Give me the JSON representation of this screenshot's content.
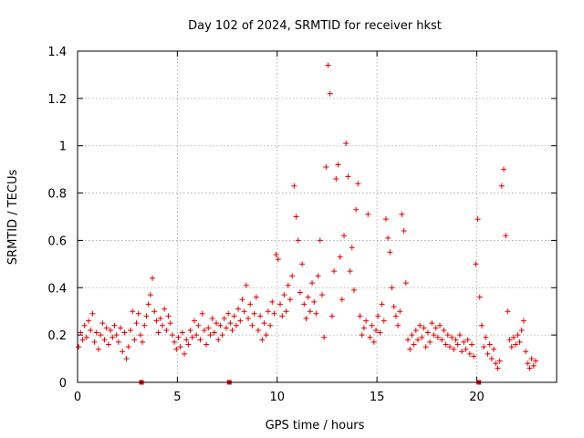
{
  "chart_data": {
    "type": "scatter",
    "title": "Day 102 of 2024, SRMTID for receiver hkst",
    "xlabel": "GPS time / hours",
    "ylabel": "SRMTID / TECUs",
    "xlim": [
      0,
      24
    ],
    "ylim": [
      0,
      1.4
    ],
    "xticks": [
      0,
      5,
      10,
      15,
      20
    ],
    "xtick_labels": [
      "0",
      "5",
      "10",
      "15",
      "20"
    ],
    "yticks": [
      0,
      0.2,
      0.4,
      0.6,
      0.8,
      1.0,
      1.2,
      1.4
    ],
    "ytick_labels": [
      "0",
      "0.2",
      "0.4",
      "0.6",
      "0.8",
      "1",
      "1.2",
      "1.4"
    ],
    "grid": true,
    "marker": "plus",
    "color": "#e00000",
    "series": [
      {
        "name": "SRMTID",
        "points": [
          [
            0.05,
            0.15
          ],
          [
            0.15,
            0.21
          ],
          [
            0.25,
            0.18
          ],
          [
            0.35,
            0.24
          ],
          [
            0.45,
            0.19
          ],
          [
            0.55,
            0.26
          ],
          [
            0.65,
            0.22
          ],
          [
            0.75,
            0.29
          ],
          [
            0.85,
            0.17
          ],
          [
            0.95,
            0.21
          ],
          [
            1.05,
            0.14
          ],
          [
            1.15,
            0.2
          ],
          [
            1.25,
            0.25
          ],
          [
            1.35,
            0.18
          ],
          [
            1.45,
            0.23
          ],
          [
            1.55,
            0.16
          ],
          [
            1.65,
            0.22
          ],
          [
            1.75,
            0.19
          ],
          [
            1.85,
            0.24
          ],
          [
            1.95,
            0.2
          ],
          [
            2.05,
            0.17
          ],
          [
            2.15,
            0.23
          ],
          [
            2.25,
            0.13
          ],
          [
            2.35,
            0.21
          ],
          [
            2.45,
            0.1
          ],
          [
            2.55,
            0.15
          ],
          [
            2.65,
            0.22
          ],
          [
            2.75,
            0.3
          ],
          [
            2.85,
            0.18
          ],
          [
            2.95,
            0.25
          ],
          [
            3.05,
            0.29
          ],
          [
            3.15,
            0.2
          ],
          [
            3.25,
            0.17
          ],
          [
            3.35,
            0.24
          ],
          [
            3.45,
            0.28
          ],
          [
            3.55,
            0.33
          ],
          [
            3.65,
            0.37
          ],
          [
            3.75,
            0.44
          ],
          [
            3.85,
            0.3
          ],
          [
            3.95,
            0.26
          ],
          [
            4.05,
            0.21
          ],
          [
            4.15,
            0.27
          ],
          [
            4.25,
            0.24
          ],
          [
            4.35,
            0.31
          ],
          [
            4.45,
            0.22
          ],
          [
            4.55,
            0.28
          ],
          [
            4.65,
            0.25
          ],
          [
            4.75,
            0.2
          ],
          [
            4.85,
            0.17
          ],
          [
            4.95,
            0.14
          ],
          [
            5.05,
            0.19
          ],
          [
            5.15,
            0.15
          ],
          [
            5.25,
            0.21
          ],
          [
            5.35,
            0.12
          ],
          [
            5.45,
            0.18
          ],
          [
            5.55,
            0.16
          ],
          [
            5.65,
            0.22
          ],
          [
            5.75,
            0.19
          ],
          [
            5.85,
            0.26
          ],
          [
            5.95,
            0.2
          ],
          [
            6.05,
            0.24
          ],
          [
            6.15,
            0.18
          ],
          [
            6.25,
            0.29
          ],
          [
            6.35,
            0.22
          ],
          [
            6.45,
            0.16
          ],
          [
            6.55,
            0.23
          ],
          [
            6.65,
            0.2
          ],
          [
            6.75,
            0.27
          ],
          [
            6.85,
            0.21
          ],
          [
            6.95,
            0.25
          ],
          [
            7.05,
            0.18
          ],
          [
            7.15,
            0.24
          ],
          [
            7.25,
            0.2
          ],
          [
            7.35,
            0.27
          ],
          [
            7.45,
            0.23
          ],
          [
            7.55,
            0.29
          ],
          [
            7.65,
            0.25
          ],
          [
            7.75,
            0.22
          ],
          [
            7.85,
            0.28
          ],
          [
            7.95,
            0.24
          ],
          [
            8.05,
            0.31
          ],
          [
            8.15,
            0.26
          ],
          [
            8.25,
            0.35
          ],
          [
            8.35,
            0.3
          ],
          [
            8.45,
            0.41
          ],
          [
            8.55,
            0.27
          ],
          [
            8.65,
            0.33
          ],
          [
            8.75,
            0.24
          ],
          [
            8.85,
            0.29
          ],
          [
            8.95,
            0.36
          ],
          [
            9.05,
            0.22
          ],
          [
            9.15,
            0.28
          ],
          [
            9.25,
            0.18
          ],
          [
            9.35,
            0.25
          ],
          [
            9.45,
            0.2
          ],
          [
            9.55,
            0.3
          ],
          [
            9.65,
            0.24
          ],
          [
            9.75,
            0.34
          ],
          [
            9.85,
            0.29
          ],
          [
            9.95,
            0.54
          ],
          [
            10.05,
            0.52
          ],
          [
            10.15,
            0.33
          ],
          [
            10.25,
            0.28
          ],
          [
            10.35,
            0.37
          ],
          [
            10.45,
            0.3
          ],
          [
            10.55,
            0.41
          ],
          [
            10.65,
            0.35
          ],
          [
            10.75,
            0.45
          ],
          [
            10.85,
            0.83
          ],
          [
            10.95,
            0.7
          ],
          [
            11.05,
            0.6
          ],
          [
            11.15,
            0.38
          ],
          [
            11.25,
            0.5
          ],
          [
            11.35,
            0.33
          ],
          [
            11.45,
            0.27
          ],
          [
            11.55,
            0.36
          ],
          [
            11.65,
            0.3
          ],
          [
            11.75,
            0.42
          ],
          [
            11.85,
            0.34
          ],
          [
            11.95,
            0.29
          ],
          [
            12.05,
            0.45
          ],
          [
            12.15,
            0.6
          ],
          [
            12.25,
            0.37
          ],
          [
            12.35,
            0.19
          ],
          [
            12.45,
            0.91
          ],
          [
            12.55,
            1.34
          ],
          [
            12.65,
            1.22
          ],
          [
            12.75,
            0.28
          ],
          [
            12.85,
            0.47
          ],
          [
            12.95,
            0.86
          ],
          [
            13.05,
            0.92
          ],
          [
            13.15,
            0.53
          ],
          [
            13.25,
            0.35
          ],
          [
            13.35,
            0.62
          ],
          [
            13.45,
            1.01
          ],
          [
            13.55,
            0.87
          ],
          [
            13.65,
            0.47
          ],
          [
            13.75,
            0.57
          ],
          [
            13.85,
            0.39
          ],
          [
            13.95,
            0.73
          ],
          [
            14.05,
            0.84
          ],
          [
            14.15,
            0.28
          ],
          [
            14.25,
            0.2
          ],
          [
            14.35,
            0.23
          ],
          [
            14.45,
            0.26
          ],
          [
            14.55,
            0.71
          ],
          [
            14.65,
            0.19
          ],
          [
            14.75,
            0.24
          ],
          [
            14.85,
            0.17
          ],
          [
            14.95,
            0.22
          ],
          [
            15.05,
            0.28
          ],
          [
            15.15,
            0.21
          ],
          [
            15.25,
            0.33
          ],
          [
            15.35,
            0.26
          ],
          [
            15.45,
            0.69
          ],
          [
            15.55,
            0.61
          ],
          [
            15.65,
            0.55
          ],
          [
            15.75,
            0.4
          ],
          [
            15.85,
            0.32
          ],
          [
            15.95,
            0.28
          ],
          [
            16.05,
            0.24
          ],
          [
            16.15,
            0.3
          ],
          [
            16.25,
            0.71
          ],
          [
            16.35,
            0.64
          ],
          [
            16.45,
            0.42
          ],
          [
            16.55,
            0.18
          ],
          [
            16.65,
            0.14
          ],
          [
            16.75,
            0.2
          ],
          [
            16.85,
            0.16
          ],
          [
            16.95,
            0.22
          ],
          [
            17.05,
            0.18
          ],
          [
            17.15,
            0.24
          ],
          [
            17.25,
            0.19
          ],
          [
            17.35,
            0.23
          ],
          [
            17.45,
            0.15
          ],
          [
            17.55,
            0.21
          ],
          [
            17.65,
            0.17
          ],
          [
            17.75,
            0.25
          ],
          [
            17.85,
            0.2
          ],
          [
            17.95,
            0.23
          ],
          [
            18.05,
            0.19
          ],
          [
            18.15,
            0.24
          ],
          [
            18.25,
            0.18
          ],
          [
            18.35,
            0.22
          ],
          [
            18.45,
            0.16
          ],
          [
            18.55,
            0.2
          ],
          [
            18.65,
            0.15
          ],
          [
            18.75,
            0.19
          ],
          [
            18.85,
            0.14
          ],
          [
            18.95,
            0.18
          ],
          [
            19.05,
            0.16
          ],
          [
            19.15,
            0.2
          ],
          [
            19.25,
            0.13
          ],
          [
            19.35,
            0.17
          ],
          [
            19.45,
            0.14
          ],
          [
            19.55,
            0.18
          ],
          [
            19.65,
            0.12
          ],
          [
            19.75,
            0.16
          ],
          [
            19.85,
            0.11
          ],
          [
            19.95,
            0.5
          ],
          [
            20.05,
            0.69
          ],
          [
            20.15,
            0.36
          ],
          [
            20.25,
            0.24
          ],
          [
            20.35,
            0.15
          ],
          [
            20.45,
            0.19
          ],
          [
            20.55,
            0.12
          ],
          [
            20.65,
            0.16
          ],
          [
            20.75,
            0.1
          ],
          [
            20.85,
            0.14
          ],
          [
            20.95,
            0.08
          ],
          [
            21.05,
            0.06
          ],
          [
            21.15,
            0.09
          ],
          [
            21.25,
            0.83
          ],
          [
            21.35,
            0.9
          ],
          [
            21.45,
            0.62
          ],
          [
            21.55,
            0.3
          ],
          [
            21.65,
            0.18
          ],
          [
            21.75,
            0.15
          ],
          [
            21.85,
            0.19
          ],
          [
            21.95,
            0.16
          ],
          [
            22.05,
            0.2
          ],
          [
            22.15,
            0.17
          ],
          [
            22.25,
            0.22
          ],
          [
            22.35,
            0.26
          ],
          [
            22.45,
            0.13
          ],
          [
            22.55,
            0.08
          ],
          [
            22.65,
            0.06
          ],
          [
            22.75,
            0.1
          ],
          [
            22.85,
            0.07
          ],
          [
            22.95,
            0.09
          ]
        ]
      }
    ],
    "flags": [
      [
        3.2,
        0.0
      ],
      [
        7.6,
        0.0
      ],
      [
        20.1,
        0.0
      ]
    ]
  }
}
